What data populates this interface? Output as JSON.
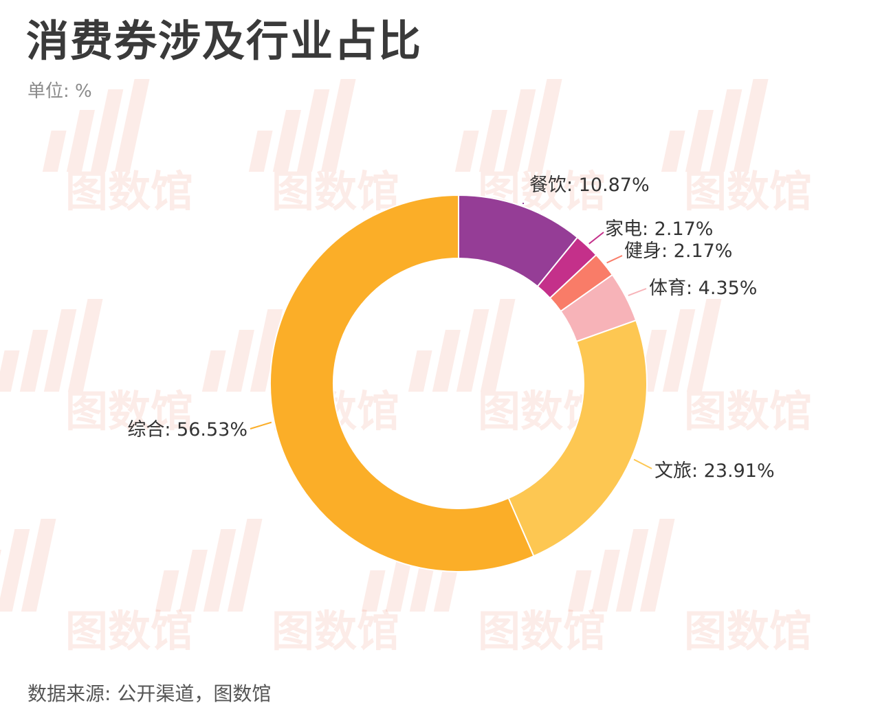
{
  "title": "消费券涉及行业占比",
  "subtitle": "单位: %",
  "source": "数据来源: 公开渠道，图数馆",
  "watermark_text": "图数馆",
  "chart_data": {
    "type": "pie",
    "variant": "donut",
    "title": "消费券涉及行业占比",
    "unit": "%",
    "slices": [
      {
        "name": "餐饮",
        "value": 10.87,
        "label": "餐饮: 10.87%",
        "color": "#953d96"
      },
      {
        "name": "家电",
        "value": 2.17,
        "label": "家电: 2.17%",
        "color": "#c4308a"
      },
      {
        "name": "健身",
        "value": 2.17,
        "label": "健身: 2.17%",
        "color": "#f97c68"
      },
      {
        "name": "体育",
        "value": 4.35,
        "label": "体育: 4.35%",
        "color": "#f7b3b8"
      },
      {
        "name": "文旅",
        "value": 23.91,
        "label": "文旅: 23.91%",
        "color": "#fdc752"
      },
      {
        "name": "综合",
        "value": 56.53,
        "label": "综合: 56.53%",
        "color": "#fbae28"
      }
    ],
    "start_position": "top",
    "direction": "clockwise",
    "legend": "none"
  }
}
